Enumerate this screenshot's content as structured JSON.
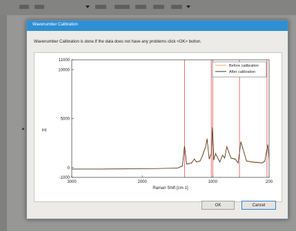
{
  "dialog": {
    "title": "Wavenumber Calibration",
    "message": "Wavenumber Calibration is done.If the data does not have any problems click <OK> button.",
    "ok_label": "OK",
    "cancel_label": "Cancel"
  },
  "colors": {
    "title_bar": "#2e8fd4",
    "before_line": "#e8a25a",
    "after_line": "#333333",
    "marker_line": "#e06060"
  },
  "chart_data": {
    "type": "line",
    "xlabel": "Raman Shift [cm-1]",
    "ylabel": "Int",
    "xlim": [
      3000,
      200
    ],
    "x_reversed": true,
    "ylim": [
      -1000,
      11000
    ],
    "x_ticks": [
      3000,
      2000,
      1000,
      200
    ],
    "y_ticks": [
      {
        "value": 11000,
        "label": "11000"
      },
      {
        "value": 10000,
        "label": "10000"
      },
      {
        "value": 5000,
        "label": "5000"
      },
      {
        "value": 0,
        "label": "0"
      },
      {
        "value": -1000,
        "label": "-1000"
      }
    ],
    "legend_position": "top-right",
    "marker_lines": [
      1400,
      1020,
      1000,
      620,
      230
    ],
    "series": [
      {
        "name": "Before calibration",
        "x": [
          3000,
          2600,
          2200,
          1800,
          1500,
          1430,
          1400,
          1370,
          1300,
          1260,
          1230,
          1180,
          1150,
          1100,
          1080,
          1050,
          1020,
          1003,
          985,
          960,
          900,
          860,
          830,
          800,
          740,
          680,
          640,
          600,
          520,
          440,
          360,
          300,
          260,
          240,
          220,
          200
        ],
        "y": [
          -150,
          -150,
          -130,
          -100,
          -50,
          200,
          2300,
          400,
          500,
          900,
          600,
          700,
          1200,
          2200,
          3000,
          900,
          1500,
          4200,
          800,
          1500,
          600,
          1300,
          1000,
          2200,
          1000,
          900,
          500,
          2700,
          700,
          600,
          550,
          500,
          700,
          1600,
          2400,
          900
        ]
      },
      {
        "name": "After calibration",
        "x": [
          3000,
          2600,
          2200,
          1800,
          1500,
          1430,
          1400,
          1370,
          1300,
          1260,
          1230,
          1180,
          1150,
          1100,
          1080,
          1050,
          1020,
          1003,
          985,
          960,
          900,
          860,
          830,
          800,
          740,
          680,
          640,
          600,
          520,
          440,
          360,
          300,
          260,
          240,
          220,
          200
        ],
        "y": [
          -150,
          -150,
          -130,
          -100,
          -50,
          150,
          2200,
          350,
          450,
          850,
          550,
          650,
          1100,
          2100,
          2900,
          850,
          1400,
          4100,
          750,
          1400,
          550,
          1250,
          950,
          2100,
          950,
          850,
          450,
          2600,
          650,
          550,
          500,
          450,
          650,
          1500,
          2300,
          850
        ]
      }
    ]
  }
}
